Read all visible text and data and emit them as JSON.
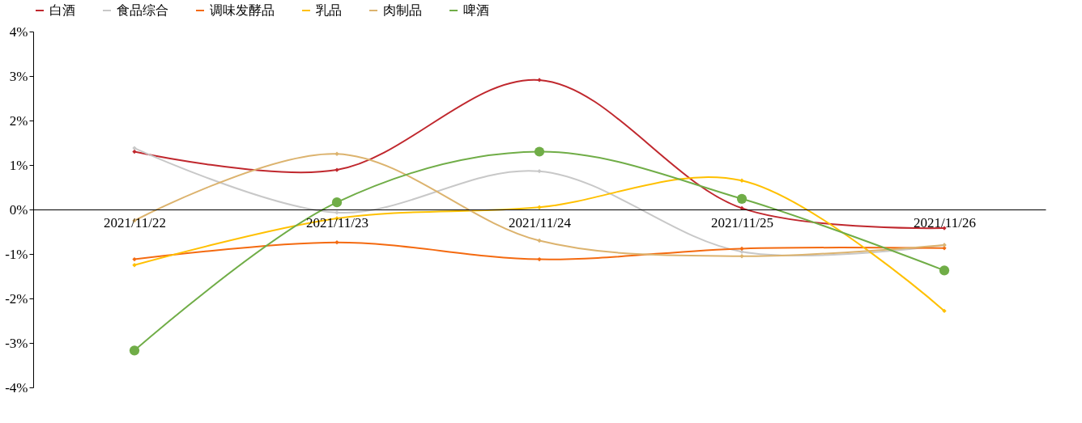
{
  "chart_data": {
    "type": "line",
    "categories": [
      "2021/11/22",
      "2021/11/23",
      "2021/11/24",
      "2021/11/25",
      "2021/11/26"
    ],
    "series": [
      {
        "name": "白酒",
        "color": "#c0282e",
        "marker": "diamond",
        "values": [
          1.3,
          0.89,
          2.91,
          0.03,
          -0.42
        ]
      },
      {
        "name": "食品综合",
        "color": "#c8c8c8",
        "marker": "diamond",
        "values": [
          1.38,
          -0.07,
          0.86,
          -0.95,
          -0.8
        ]
      },
      {
        "name": "调味发酵品",
        "color": "#f46a10",
        "marker": "diamond",
        "values": [
          -1.12,
          -0.74,
          -1.12,
          -0.88,
          -0.87
        ]
      },
      {
        "name": "乳品",
        "color": "#ffc000",
        "marker": "diamond",
        "values": [
          -1.25,
          -0.2,
          0.05,
          0.65,
          -2.28
        ]
      },
      {
        "name": "肉制品",
        "color": "#dcb36e",
        "marker": "diamond",
        "values": [
          -0.25,
          1.25,
          -0.7,
          -1.05,
          -0.8
        ]
      },
      {
        "name": "啤酒",
        "color": "#70ad47",
        "marker": "circle",
        "values": [
          -3.17,
          0.16,
          1.3,
          0.24,
          -1.37
        ]
      }
    ],
    "ylim": [
      -4,
      4
    ],
    "yticks": [
      {
        "value": -4,
        "label": "-4%"
      },
      {
        "value": -3,
        "label": "-3%"
      },
      {
        "value": -2,
        "label": "-2%"
      },
      {
        "value": -1,
        "label": "-1%"
      },
      {
        "value": 0,
        "label": "0%"
      },
      {
        "value": 1,
        "label": "1%"
      },
      {
        "value": 2,
        "label": "2%"
      },
      {
        "value": 3,
        "label": "3%"
      },
      {
        "value": 4,
        "label": "4%"
      }
    ],
    "grid": false,
    "legend": "top",
    "line_style": "solid"
  }
}
